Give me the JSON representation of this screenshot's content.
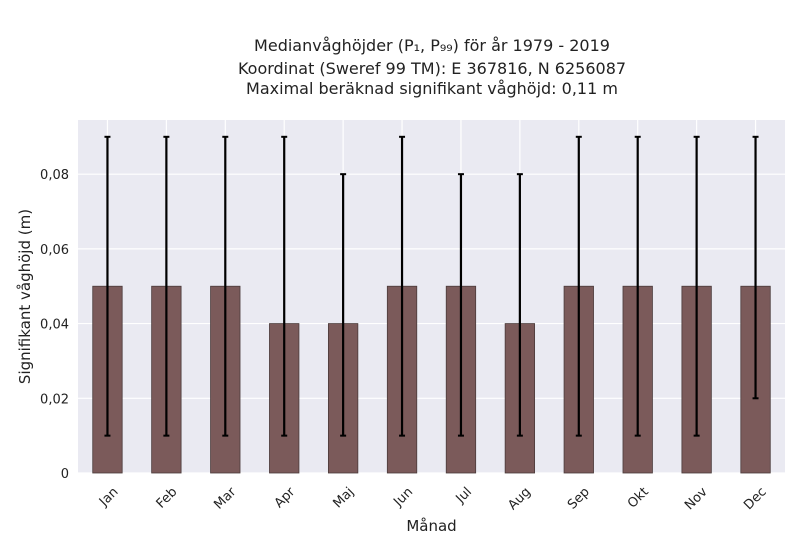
{
  "chart_data": {
    "type": "bar",
    "title_lines": [
      "Medianvåghöjder (P₁, P₉₉) för år 1979 - 2019",
      "Koordinat (Sweref 99 TM): E 367816, N 6256087",
      "Maximal beräknad signifikant våghöjd: 0,11 m"
    ],
    "xlabel": "Månad",
    "ylabel": "Signifikant våghöjd (m)",
    "categories": [
      "Jan",
      "Feb",
      "Mar",
      "Apr",
      "Maj",
      "Jun",
      "Jul",
      "Aug",
      "Sep",
      "Okt",
      "Nov",
      "Dec"
    ],
    "values": [
      0.05,
      0.05,
      0.05,
      0.04,
      0.04,
      0.05,
      0.05,
      0.04,
      0.05,
      0.05,
      0.05,
      0.05
    ],
    "p1": [
      0.01,
      0.01,
      0.01,
      0.01,
      0.01,
      0.01,
      0.01,
      0.01,
      0.01,
      0.01,
      0.01,
      0.02
    ],
    "p99": [
      0.09,
      0.09,
      0.09,
      0.09,
      0.08,
      0.09,
      0.08,
      0.08,
      0.09,
      0.09,
      0.09,
      0.09
    ],
    "yticks": [
      0,
      0.02,
      0.04,
      0.06,
      0.08
    ],
    "ytick_labels": [
      "0",
      "0,02",
      "0,04",
      "0,06",
      "0,08"
    ],
    "ylim": [
      0,
      0.0945
    ],
    "grid": true,
    "colors": {
      "bar": "#7b5a5a",
      "plot_bg": "#eaeaf2",
      "grid": "#ffffff",
      "error": "#000000"
    }
  }
}
